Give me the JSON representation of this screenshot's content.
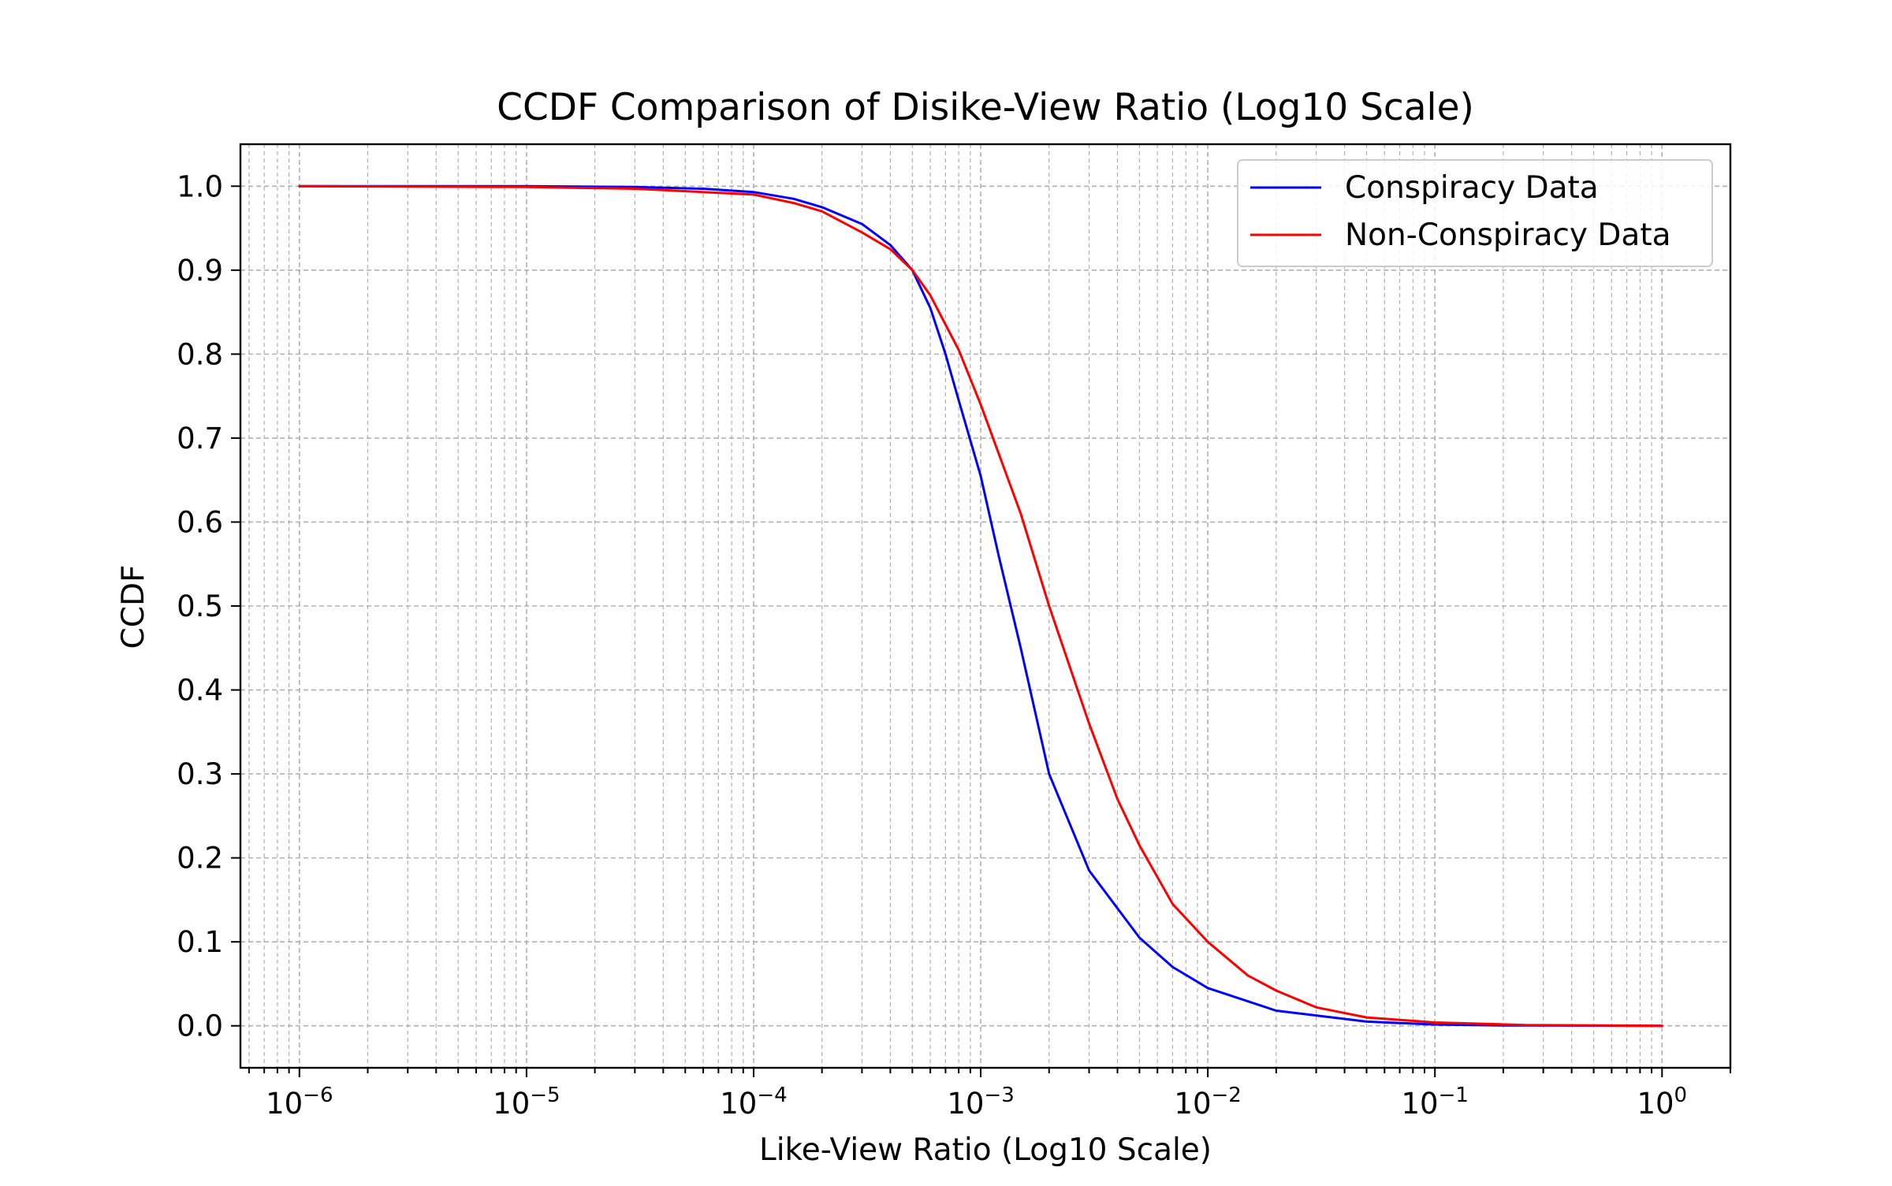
{
  "chart_data": {
    "type": "line",
    "title": "CCDF Comparison of Disike-View Ratio (Log10 Scale)",
    "xlabel": "Like-View Ratio (Log10 Scale)",
    "ylabel": "CCDF",
    "xscale": "log",
    "xlim": [
      5.5e-07,
      2.0
    ],
    "ylim": [
      -0.05,
      1.05
    ],
    "grid": "major and minor, dashed",
    "legend_position": "top-right",
    "x_ticks": [
      {
        "value": 1e-06,
        "base": "10",
        "exp": "−6"
      },
      {
        "value": 1e-05,
        "base": "10",
        "exp": "−5"
      },
      {
        "value": 0.0001,
        "base": "10",
        "exp": "−4"
      },
      {
        "value": 0.001,
        "base": "10",
        "exp": "−3"
      },
      {
        "value": 0.01,
        "base": "10",
        "exp": "−2"
      },
      {
        "value": 0.1,
        "base": "10",
        "exp": "−1"
      },
      {
        "value": 1,
        "base": "10",
        "exp": "0"
      }
    ],
    "y_ticks": [
      {
        "value": 0.0,
        "label": "0.0"
      },
      {
        "value": 0.1,
        "label": "0.1"
      },
      {
        "value": 0.2,
        "label": "0.2"
      },
      {
        "value": 0.3,
        "label": "0.3"
      },
      {
        "value": 0.4,
        "label": "0.4"
      },
      {
        "value": 0.5,
        "label": "0.5"
      },
      {
        "value": 0.6,
        "label": "0.6"
      },
      {
        "value": 0.7,
        "label": "0.7"
      },
      {
        "value": 0.8,
        "label": "0.8"
      },
      {
        "value": 0.9,
        "label": "0.9"
      },
      {
        "value": 1.0,
        "label": "1.0"
      }
    ],
    "series": [
      {
        "name": "Conspiracy Data",
        "color": "#0000ff",
        "points": [
          [
            1e-06,
            1.0
          ],
          [
            1e-05,
            1.0
          ],
          [
            3e-05,
            0.999
          ],
          [
            6e-05,
            0.997
          ],
          [
            0.0001,
            0.993
          ],
          [
            0.00015,
            0.985
          ],
          [
            0.0002,
            0.975
          ],
          [
            0.0003,
            0.955
          ],
          [
            0.0004,
            0.93
          ],
          [
            0.0005,
            0.9
          ],
          [
            0.0006,
            0.855
          ],
          [
            0.0007,
            0.8
          ],
          [
            0.0008,
            0.745
          ],
          [
            0.001,
            0.655
          ],
          [
            0.0012,
            0.56
          ],
          [
            0.0015,
            0.45
          ],
          [
            0.002,
            0.3
          ],
          [
            0.003,
            0.185
          ],
          [
            0.005,
            0.105
          ],
          [
            0.007,
            0.07
          ],
          [
            0.01,
            0.045
          ],
          [
            0.02,
            0.018
          ],
          [
            0.05,
            0.005
          ],
          [
            0.1,
            0.0015
          ],
          [
            0.2,
            0.0005
          ],
          [
            1.0,
            0.0
          ]
        ]
      },
      {
        "name": "Non-Conspiracy Data",
        "color": "#ff0000",
        "points": [
          [
            1e-06,
            1.0
          ],
          [
            1e-05,
            0.999
          ],
          [
            3e-05,
            0.997
          ],
          [
            0.0001,
            0.99
          ],
          [
            0.00015,
            0.98
          ],
          [
            0.0002,
            0.97
          ],
          [
            0.0003,
            0.945
          ],
          [
            0.0004,
            0.925
          ],
          [
            0.0005,
            0.9
          ],
          [
            0.0006,
            0.87
          ],
          [
            0.0008,
            0.805
          ],
          [
            0.001,
            0.74
          ],
          [
            0.0015,
            0.61
          ],
          [
            0.002,
            0.5
          ],
          [
            0.003,
            0.36
          ],
          [
            0.004,
            0.27
          ],
          [
            0.005,
            0.215
          ],
          [
            0.007,
            0.145
          ],
          [
            0.01,
            0.1
          ],
          [
            0.015,
            0.06
          ],
          [
            0.02,
            0.042
          ],
          [
            0.03,
            0.022
          ],
          [
            0.05,
            0.01
          ],
          [
            0.1,
            0.004
          ],
          [
            0.25,
            0.001
          ],
          [
            1.0,
            0.0
          ]
        ]
      }
    ]
  }
}
